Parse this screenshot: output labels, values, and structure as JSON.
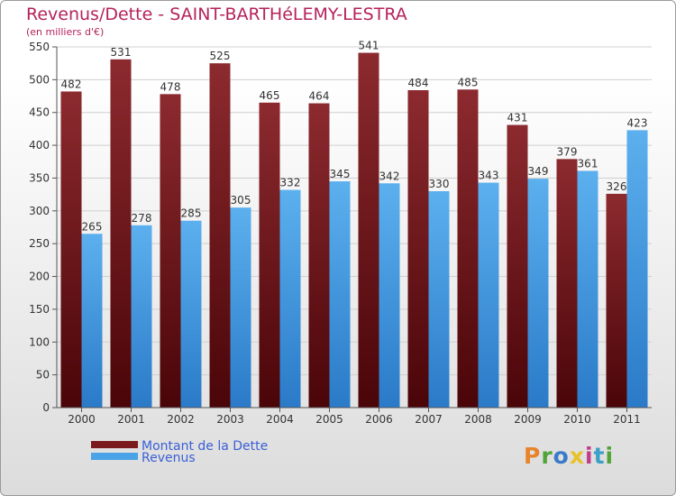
{
  "chart_data": {
    "type": "bar",
    "title": "Revenus/Dette - SAINT-BARTHéLEMY-LESTRA",
    "subtitle": "(en milliers d'€)",
    "categories": [
      "2000",
      "2001",
      "2002",
      "2003",
      "2004",
      "2005",
      "2006",
      "2007",
      "2008",
      "2009",
      "2010",
      "2011"
    ],
    "series": [
      {
        "name": "Montant de la Dette",
        "values": [
          482,
          531,
          478,
          525,
          465,
          464,
          541,
          484,
          485,
          431,
          379,
          326
        ],
        "color": "#7a1a1f"
      },
      {
        "name": "Revenus",
        "values": [
          265,
          278,
          285,
          305,
          332,
          345,
          342,
          330,
          343,
          349,
          361,
          423
        ],
        "color": "#4aa3e6"
      }
    ],
    "ylim": [
      0,
      550
    ],
    "yticks": [
      "0",
      "50",
      "100",
      "150",
      "200",
      "250",
      "300",
      "350",
      "400",
      "450",
      "500",
      "550"
    ],
    "grid": true,
    "legend_position": "bottom-left"
  },
  "logo": {
    "letters": [
      "P",
      "r",
      "o",
      "x",
      "i",
      "t",
      "i"
    ]
  }
}
